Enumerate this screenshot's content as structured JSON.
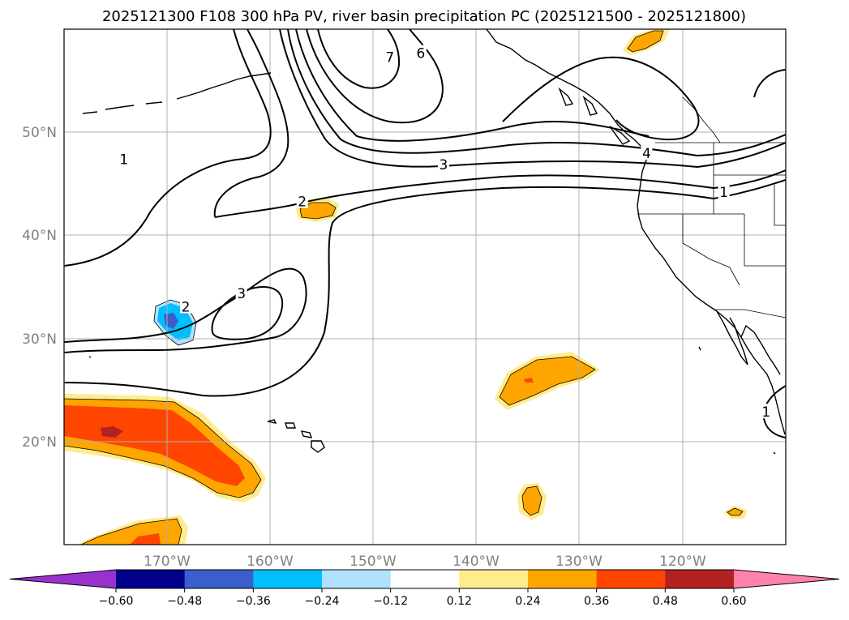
{
  "chart_data": {
    "type": "contour-map",
    "title": "2025121300 F108 300 hPa PV, river basin precipitation PC (2025121500 - 2025121800)",
    "x_ticks": [
      "170°W",
      "160°W",
      "150°W",
      "140°W",
      "130°W",
      "120°W"
    ],
    "x_tick_values": [
      -170,
      -160,
      -150,
      -140,
      -130,
      -120
    ],
    "y_ticks": [
      "50°N",
      "40°N",
      "30°N",
      "20°N"
    ],
    "y_tick_values": [
      50,
      40,
      30,
      20
    ],
    "xlim": [
      -180,
      -110
    ],
    "ylim": [
      10,
      60
    ],
    "grid": true,
    "colorbar": {
      "orientation": "horizontal",
      "extend": "both",
      "tick_labels": [
        "−0.60",
        "−0.48",
        "−0.36",
        "−0.24",
        "−0.12",
        "0.12",
        "0.24",
        "0.36",
        "0.48",
        "0.60"
      ],
      "levels": [
        -0.6,
        -0.48,
        -0.36,
        -0.24,
        -0.12,
        0.12,
        0.24,
        0.36,
        0.48,
        0.6
      ],
      "colors": [
        "#9932cc",
        "#00008b",
        "#3a5fcd",
        "#00bfff",
        "#b0e2ff",
        "#ffffff",
        "#ffec8b",
        "#ffa500",
        "#ff4500",
        "#b22222",
        "#ff82ab"
      ]
    },
    "contour_labels": [
      {
        "text": "1",
        "lon": -174.2,
        "lat": 47.3
      },
      {
        "text": "2",
        "lon": -156.9,
        "lat": 43.2
      },
      {
        "text": "3",
        "lon": -143.2,
        "lat": 46.8
      },
      {
        "text": "4",
        "lon": -123.5,
        "lat": 47.9
      },
      {
        "text": "1",
        "lon": -116,
        "lat": 44.1
      },
      {
        "text": "6",
        "lon": -145.4,
        "lat": 57.6
      },
      {
        "text": "7",
        "lon": -148.4,
        "lat": 57.2
      },
      {
        "text": "3",
        "lon": -162.8,
        "lat": 34.3
      },
      {
        "text": "2",
        "lon": -168.2,
        "lat": 33.0
      },
      {
        "text": "1",
        "lon": -111.9,
        "lat": 22.8
      }
    ]
  }
}
